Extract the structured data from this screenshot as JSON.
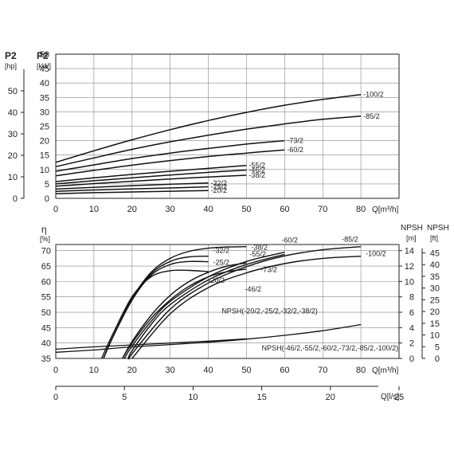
{
  "chart_data": [
    {
      "type": "line",
      "title": "",
      "xlabel": "Q[m³/h]",
      "ylabel_left": "P2 [hp]",
      "ylabel_right": "P2 [kW]",
      "y_left_header": "P2",
      "y_left_unit": "[hp]",
      "y_right_header": "P2",
      "y_right_unit": "[kW]",
      "x_ticks": [
        0,
        10,
        20,
        30,
        40,
        50,
        60,
        70,
        80
      ],
      "kw_ticks": [
        0,
        5,
        10,
        15,
        20,
        25,
        30,
        35,
        40,
        45,
        50
      ],
      "hp_ticks": [
        0,
        10,
        20,
        30,
        40,
        50
      ],
      "xlim": [
        0,
        90
      ],
      "ylim_kw": [
        0,
        50
      ],
      "grid": true,
      "series": [
        {
          "name": "-100/2",
          "x": [
            0,
            10,
            20,
            30,
            40,
            50,
            60,
            70,
            80
          ],
          "y": [
            12.5,
            16.5,
            20.3,
            23.8,
            27,
            29.8,
            32.3,
            34.3,
            36
          ]
        },
        {
          "name": "-85/2",
          "x": [
            0,
            10,
            20,
            30,
            40,
            50,
            60,
            70,
            80
          ],
          "y": [
            11,
            14,
            17,
            19.6,
            21.9,
            24,
            25.8,
            27.4,
            28.5
          ]
        },
        {
          "name": "-73/2",
          "x": [
            0,
            10,
            20,
            30,
            40,
            50,
            60
          ],
          "y": [
            9.4,
            11.6,
            13.8,
            15.7,
            17.3,
            18.8,
            20
          ]
        },
        {
          "name": "-60/2",
          "x": [
            0,
            10,
            20,
            30,
            40,
            50,
            60
          ],
          "y": [
            7.8,
            9.7,
            11.5,
            13.1,
            14.5,
            15.7,
            16.8
          ]
        },
        {
          "name": "-55/2",
          "x": [
            0,
            10,
            20,
            30,
            40,
            50
          ],
          "y": [
            5.8,
            7.1,
            8.3,
            9.4,
            10.4,
            11.4
          ]
        },
        {
          "name": "-46/2",
          "x": [
            0,
            10,
            20,
            30,
            40,
            50
          ],
          "y": [
            5,
            6.1,
            7.1,
            8.1,
            9,
            9.8
          ]
        },
        {
          "name": "-38/2",
          "x": [
            0,
            10,
            20,
            30,
            40,
            50
          ],
          "y": [
            4.2,
            5.1,
            5.9,
            6.7,
            7.4,
            8
          ]
        },
        {
          "name": "-32/2",
          "x": [
            0,
            10,
            20,
            30,
            40
          ],
          "y": [
            3.2,
            3.8,
            4.4,
            4.9,
            5.3
          ]
        },
        {
          "name": "-25/2",
          "x": [
            0,
            10,
            20,
            30,
            40
          ],
          "y": [
            2.4,
            2.9,
            3.3,
            3.6,
            4
          ]
        },
        {
          "name": "-20/2",
          "x": [
            0,
            10,
            20,
            30,
            40
          ],
          "y": [
            1.6,
            1.95,
            2.2,
            2.45,
            2.7
          ]
        }
      ]
    },
    {
      "type": "line",
      "title": "",
      "xlabel": "Q[m³/h]",
      "x2label": "Q[l/s]",
      "ylabel_left": "η [%]",
      "ylabel_right": "NPSH [m] / NPSH [ft]",
      "eta_header": "η",
      "eta_unit": "[%]",
      "npsh_m_header": "NPSH",
      "npsh_m_unit": "[m]",
      "npsh_ft_header": "NPSH",
      "npsh_ft_unit": "[ft]",
      "x_ticks": [
        0,
        10,
        20,
        30,
        40,
        50,
        60,
        70,
        80
      ],
      "ls_ticks": [
        0,
        5,
        10,
        15,
        20,
        25
      ],
      "eta_ticks": [
        35,
        40,
        45,
        50,
        55,
        60,
        65,
        70
      ],
      "npsh_m_ticks": [
        0,
        2,
        4,
        6,
        8,
        10,
        12,
        14
      ],
      "npsh_ft_ticks": [
        0,
        5,
        10,
        15,
        20,
        25,
        30,
        35,
        40,
        45
      ],
      "xlim": [
        0,
        90
      ],
      "ylim_eta": [
        35,
        72
      ],
      "ylim_npsh_m": [
        0,
        14.8
      ],
      "grid": true,
      "efficiency_series": [
        {
          "name": "-20/2",
          "x": [
            12,
            15,
            20,
            25,
            30,
            35,
            40
          ],
          "y": [
            35,
            43,
            55,
            61.5,
            63.5,
            63.6,
            63.2
          ]
        },
        {
          "name": "-25/2",
          "x": [
            12.5,
            15,
            20,
            25,
            30,
            35,
            40
          ],
          "y": [
            35,
            42,
            54,
            62,
            65.5,
            66.5,
            66.4
          ]
        },
        {
          "name": "-32/2",
          "x": [
            12.5,
            15,
            20,
            25,
            30,
            35,
            40
          ],
          "y": [
            35,
            42,
            54,
            62.5,
            66.5,
            68,
            68.2
          ]
        },
        {
          "name": "-38/2",
          "x": [
            12.5,
            15,
            20,
            25,
            30,
            35,
            40,
            45,
            50
          ],
          "y": [
            35,
            42,
            54.5,
            63,
            67.5,
            69.8,
            70.8,
            71.2,
            71.3
          ]
        },
        {
          "name": "-46/2",
          "x": [
            17.5,
            20,
            25,
            30,
            35,
            40,
            45,
            50
          ],
          "y": [
            35,
            40,
            48,
            54,
            58.5,
            61.5,
            63.2,
            64
          ]
        },
        {
          "name": "-55/2",
          "x": [
            17.5,
            20,
            25,
            30,
            35,
            40,
            45,
            50
          ],
          "y": [
            35,
            40.5,
            49,
            55.5,
            60,
            63,
            65,
            66
          ]
        },
        {
          "name": "-60/2",
          "x": [
            18,
            20,
            25,
            30,
            40,
            50,
            60
          ],
          "y": [
            35,
            39,
            47,
            53.5,
            61.5,
            66.5,
            69.5
          ]
        },
        {
          "name": "-73/2",
          "x": [
            19,
            20,
            25,
            30,
            40,
            50,
            60
          ],
          "y": [
            35,
            37.5,
            46,
            52.5,
            60.5,
            65.5,
            68.8
          ]
        },
        {
          "name": "-85/2",
          "x": [
            19.5,
            20,
            30,
            40,
            50,
            60,
            70,
            80
          ],
          "y": [
            35,
            36.5,
            51,
            59.5,
            64.8,
            68.3,
            70.3,
            71.3
          ]
        },
        {
          "name": "-100/2",
          "x": [
            20,
            30,
            40,
            50,
            60,
            70,
            80
          ],
          "y": [
            35,
            49.5,
            58,
            62.8,
            65.8,
            67.5,
            68.2
          ]
        }
      ],
      "npsh_series": [
        {
          "name": "NPSH(-20/2,-25/2,-32/2,-38/2)",
          "x": [
            0,
            10,
            20,
            30,
            40,
            50
          ],
          "y": [
            1.2,
            1.5,
            1.75,
            2.0,
            2.25,
            2.55
          ]
        },
        {
          "name": "NPSH(-46/2,-55/2,-60/2,-73/2,-85/2,-100/2)",
          "x": [
            0,
            10,
            20,
            30,
            40,
            50,
            60,
            70,
            80
          ],
          "y": [
            0.8,
            1.1,
            1.5,
            1.8,
            2.1,
            2.5,
            3.0,
            3.6,
            4.4
          ]
        }
      ]
    }
  ]
}
